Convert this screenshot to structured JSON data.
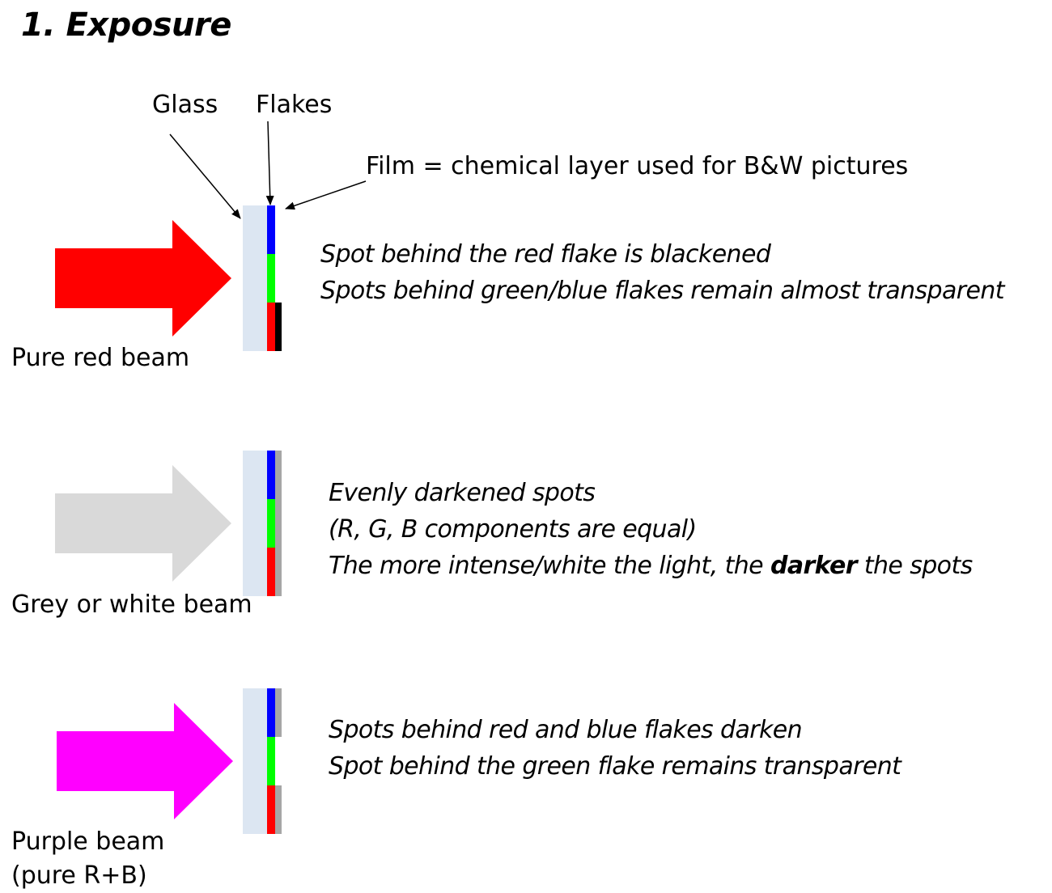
{
  "title": "1. Exposure",
  "labels": {
    "glass": "Glass",
    "flakes": "Flakes",
    "film": "Film = chemical layer used for B&W pictures"
  },
  "colors": {
    "glass": "#dce6f2",
    "flake_blue": "#0000ff",
    "flake_green": "#00ff00",
    "flake_red": "#ff0000"
  },
  "rows": [
    {
      "beam_label": [
        "Pure red beam"
      ],
      "beam_color": "#ff0000",
      "film_colors": [
        "#ffffff",
        "#ffffff",
        "#000000"
      ],
      "description": [
        [
          "Spot behind the red flake is blackened"
        ],
        [
          "Spots behind green/blue flakes remain almost transparent"
        ]
      ]
    },
    {
      "beam_label": [
        "Grey or white beam"
      ],
      "beam_color": "#d9d9d9",
      "film_colors": [
        "#a6a6a6",
        "#a6a6a6",
        "#a6a6a6"
      ],
      "description": [
        [
          "Evenly darkened spots"
        ],
        [
          "(R, G, B components are equal)"
        ],
        [
          "The more intense/white the light, the ",
          "darker",
          " the spots"
        ]
      ]
    },
    {
      "beam_label": [
        "Purple beam",
        "(pure R+B)"
      ],
      "beam_color": "#ff00ff",
      "film_colors": [
        "#a6a6a6",
        "#ffffff",
        "#a6a6a6"
      ],
      "description": [
        [
          "Spots behind red and blue flakes darken"
        ],
        [
          "Spot behind the green flake remains transparent"
        ]
      ]
    }
  ]
}
